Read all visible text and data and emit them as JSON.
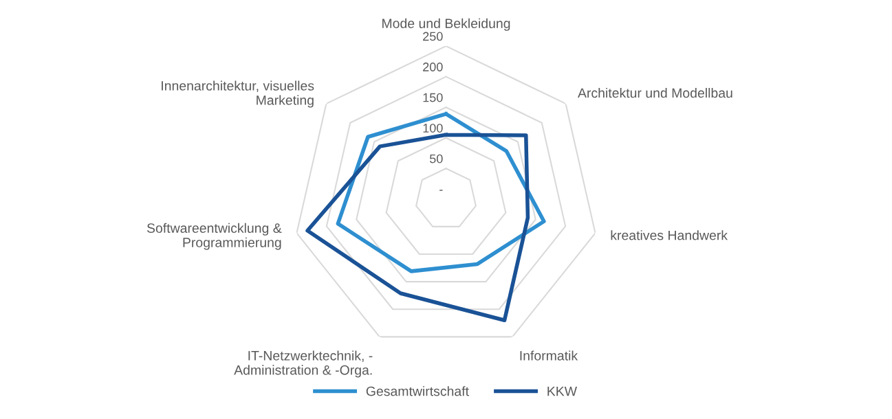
{
  "chart_data": {
    "type": "radar",
    "categories": [
      "Mode und Bekleidung",
      "Architektur und Modellbau",
      "kreatives Handwerk",
      "Informatik",
      "IT-Netzwerktechnik, -\nAdministration & -Orga.",
      "Softwareentwicklung &\nProgrammierung",
      "Innenarchitektur, visuelles\nMarketing"
    ],
    "series": [
      {
        "name": "Gesamtwirtschaft",
        "color": "#2e8fd0",
        "values": [
          139,
          126,
          164,
          118,
          131,
          181,
          163
        ]
      },
      {
        "name": "KKW",
        "color": "#1a5296",
        "values": [
          105,
          167,
          137,
          220,
          171,
          232,
          138
        ]
      }
    ],
    "ylim": [
      0,
      250
    ],
    "yticks": [
      {
        "value": 0,
        "label": "-"
      },
      50,
      100,
      150,
      200,
      250
    ],
    "grid": true,
    "legend": "bottom"
  }
}
